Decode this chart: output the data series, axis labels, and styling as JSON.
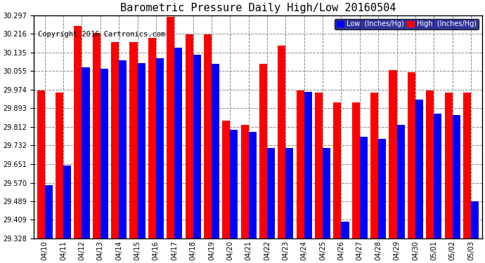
{
  "title": "Barometric Pressure Daily High/Low 20160504",
  "copyright": "Copyright 2016 Cartronics.com",
  "legend_low": "Low  (Inches/Hg)",
  "legend_high": "High  (Inches/Hg)",
  "dates": [
    "04/10",
    "04/11",
    "04/12",
    "04/13",
    "04/14",
    "04/15",
    "04/16",
    "04/17",
    "04/18",
    "04/19",
    "04/20",
    "04/21",
    "04/22",
    "04/23",
    "04/24",
    "04/25",
    "04/26",
    "04/27",
    "04/28",
    "04/29",
    "04/30",
    "05/01",
    "05/02",
    "05/03"
  ],
  "low_values": [
    29.56,
    29.645,
    30.07,
    30.065,
    30.1,
    30.09,
    30.11,
    30.155,
    30.125,
    30.085,
    29.8,
    29.79,
    29.72,
    29.72,
    29.965,
    29.72,
    29.4,
    29.77,
    29.76,
    29.82,
    29.93,
    29.87,
    29.865,
    29.489
  ],
  "high_values": [
    29.97,
    29.96,
    30.25,
    30.22,
    30.18,
    30.18,
    30.2,
    30.29,
    30.215,
    30.215,
    29.84,
    29.82,
    30.085,
    30.165,
    29.97,
    29.96,
    29.92,
    29.92,
    29.96,
    30.06,
    30.05,
    29.97,
    29.96,
    29.96
  ],
  "ylim_min": 29.328,
  "ylim_max": 30.297,
  "yticks": [
    29.328,
    29.409,
    29.489,
    29.57,
    29.651,
    29.732,
    29.812,
    29.893,
    29.974,
    30.055,
    30.135,
    30.216,
    30.297
  ],
  "low_color": "#0000ff",
  "high_color": "#ff0000",
  "bg_color": "#ffffff",
  "grid_color": "#888888",
  "title_fontsize": 11,
  "copyright_fontsize": 7.5
}
